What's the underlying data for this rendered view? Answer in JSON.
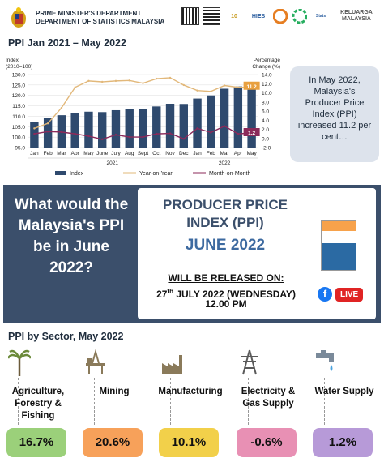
{
  "header": {
    "dept_line1": "PRIME MINISTER'S DEPARTMENT",
    "dept_line2": "DEPARTMENT OF STATISTICS MALAYSIA",
    "logos": [
      "qr-code",
      "qr-code",
      "10 tahun",
      "HIES BA",
      "OpenDOSM",
      "StatsMalaysia",
      "#KELUARGA MALAYSIA"
    ]
  },
  "chart_section": {
    "title": "PPI Jan 2021 – May 2022"
  },
  "chart_data": {
    "type": "bar",
    "categories": [
      "Jan",
      "Feb",
      "Mar",
      "Apr",
      "May",
      "June",
      "July",
      "Aug",
      "Sept",
      "Oct",
      "Nov",
      "Dec",
      "Jan",
      "Feb",
      "Mar",
      "Apr",
      "May"
    ],
    "year_labels": [
      "2021",
      "2022"
    ],
    "y_left_label_1": "Index",
    "y_left_label_2": "(2010=100)",
    "y_right_label_1": "Percentage",
    "y_right_label_2": "Change (%)",
    "y_left_ticks": [
      "130.0",
      "125.0",
      "120.0",
      "115.0",
      "110.0",
      "105.0",
      "100.0",
      "95.0"
    ],
    "y_right_ticks": [
      "14.0",
      "12.0",
      "10.0",
      "8.0",
      "6.0",
      "4.0",
      "2.0",
      "0.0",
      "-2.0"
    ],
    "ylim_left": [
      95,
      130
    ],
    "ylim_right": [
      -2,
      14
    ],
    "series": [
      {
        "name": "Index",
        "kind": "bar",
        "color": "#2f4a6e",
        "values": [
          107.3,
          109.0,
          110.5,
          111.6,
          112.2,
          112.0,
          112.9,
          113.3,
          113.6,
          114.7,
          116.0,
          115.9,
          118.5,
          120.0,
          123.2,
          124.3,
          124.8
        ]
      },
      {
        "name": "Year-on-Year",
        "kind": "line",
        "axis": "right",
        "color": "#e2b87a",
        "values": [
          2.2,
          3.3,
          6.7,
          11.2,
          12.6,
          12.4,
          12.6,
          12.7,
          12.1,
          13.1,
          13.3,
          11.7,
          10.5,
          10.3,
          11.6,
          11.2,
          11.2
        ]
      },
      {
        "name": "Month-on-Month",
        "kind": "line",
        "axis": "right",
        "color": "#8b2a5a",
        "values": [
          1.0,
          1.5,
          1.4,
          1.0,
          0.5,
          -0.2,
          0.8,
          0.3,
          0.3,
          1.0,
          1.1,
          -0.1,
          2.2,
          1.3,
          2.7,
          1.0,
          1.2
        ]
      }
    ],
    "data_labels": {
      "yoy_last": "11.2",
      "mom_last": "1.2"
    },
    "legend": [
      "Index",
      "Year-on-Year",
      "Month-on-Month"
    ],
    "legend_position": "bottom",
    "grid": true
  },
  "callout": {
    "text": "In May 2022, Malaysia's Producer Price Index (PPI) increased 11.2 per cent…"
  },
  "banner": {
    "question": "What would the Malaysia's PPI be in June 2022?",
    "ppi_title": "PRODUCER PRICE INDEX (PPI)",
    "ppi_month": "JUNE 2022",
    "release_heading": "WILL BE RELEASED ON:",
    "release_date_day": "27",
    "release_date_suffix": "th",
    "release_date_rest": " JULY 2022 (WEDNESDAY)",
    "release_time": "12.00 PM",
    "live_label": "LIVE",
    "fb_label": "f"
  },
  "sectors": {
    "title": "PPI by Sector, May 2022",
    "items": [
      {
        "name": "Agriculture, Forestry & Fishing",
        "value": "16.7%",
        "color": "#9bd07a",
        "icon": "palm-tree-icon"
      },
      {
        "name": "Mining",
        "value": "20.6%",
        "color": "#f7a15a",
        "icon": "oil-rig-icon"
      },
      {
        "name": "Manufacturing",
        "value": "10.1%",
        "color": "#f2d04a",
        "icon": "factory-icon"
      },
      {
        "name": "Electricity & Gas Supply",
        "value": "-0.6%",
        "color": "#e890b4",
        "icon": "power-tower-icon"
      },
      {
        "name": "Water Supply",
        "value": "1.2%",
        "color": "#b79ad8",
        "icon": "water-tap-icon"
      }
    ]
  }
}
